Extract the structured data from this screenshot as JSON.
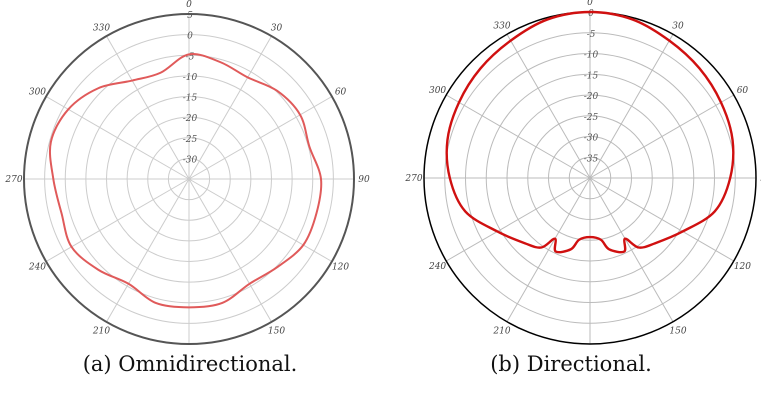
{
  "chart_data": [
    {
      "type": "polar-line",
      "caption": "(a) Omnidirectional.",
      "angle_labels": [
        "0",
        "30",
        "60",
        "90",
        "120",
        "150",
        "180",
        "210",
        "240",
        "270",
        "300",
        "330"
      ],
      "radial_labels": [
        "5",
        "0",
        "-5",
        "-10",
        "-15",
        "-20",
        "-25",
        "-30"
      ],
      "rlim": [
        -40,
        5
      ],
      "grid": true,
      "colors": {
        "trace": "#e05a5a",
        "frame": "#555555",
        "grid": "#cccccc"
      },
      "series": [
        {
          "theta": [
            0,
            15,
            30,
            45,
            60,
            75,
            90,
            105,
            120,
            135,
            150,
            165,
            180,
            195,
            210,
            225,
            240,
            255,
            270,
            285,
            300,
            315,
            330,
            345
          ],
          "r": [
            -6,
            -7,
            -8,
            -6,
            -5,
            -6,
            -4,
            -4,
            -4,
            -6,
            -7,
            -5,
            -5,
            -5,
            -7,
            -5,
            -3,
            -4,
            -3,
            -1,
            -2,
            -5,
            -9,
            -10
          ]
        }
      ]
    },
    {
      "type": "polar-line",
      "caption": "(b) Directional.",
      "angle_labels": [
        "0",
        "30",
        "60",
        "90",
        "120",
        "150",
        "180",
        "210",
        "240",
        "270",
        "300",
        "330"
      ],
      "radial_labels": [
        "0",
        "-5",
        "-10",
        "-15",
        "-20",
        "-25",
        "-30",
        "-35"
      ],
      "rlim": [
        -45,
        0
      ],
      "grid": true,
      "colors": {
        "trace": "#d01010",
        "frame": "#000000",
        "grid": "#bbbbbb"
      },
      "series": [
        {
          "theta": [
            0,
            15,
            30,
            45,
            60,
            75,
            90,
            105,
            120,
            135,
            145,
            150,
            155,
            165,
            170,
            180,
            190,
            195,
            205,
            210,
            215,
            225,
            240,
            255,
            270,
            285,
            300,
            315,
            330,
            345
          ],
          "r": [
            0,
            -0.5,
            -2,
            -3,
            -4,
            -5,
            -7,
            -10,
            -16,
            -20,
            -22,
            -26,
            -23,
            -25,
            -28,
            -29,
            -28,
            -25,
            -23,
            -26,
            -22,
            -20,
            -16,
            -10,
            -7,
            -5,
            -4,
            -3,
            -2,
            -0.5
          ]
        }
      ]
    }
  ]
}
